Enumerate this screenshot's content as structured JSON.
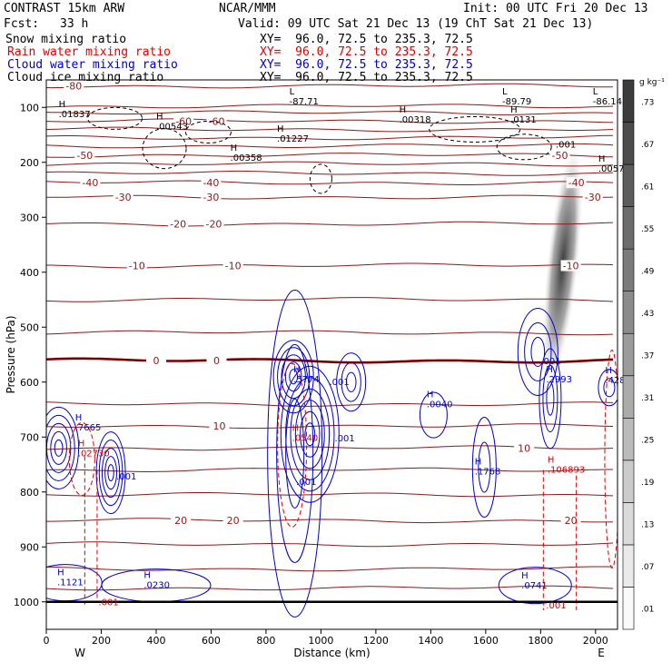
{
  "header": {
    "model": "CONTRAST 15km ARW",
    "source": "NCAR/MMM",
    "init": "Init: 00 UTC Fri 20 Dec 13",
    "fcst_label": "Fcst:",
    "fcst_value": "33 h",
    "valid": "Valid: 09 UTC Sat 21 Dec 13 (19 ChT Sat 21 Dec 13)"
  },
  "fields": [
    {
      "name": "Snow mixing ratio",
      "xy": "XY=  96.0, 72.5 to 235.3, 72.5",
      "color": "#000000"
    },
    {
      "name": "Rain water mixing ratio",
      "xy": "XY=  96.0, 72.5 to 235.3, 72.5",
      "color": "#e00000"
    },
    {
      "name": "Cloud water mixing ratio",
      "xy": "XY=  96.0, 72.5 to 235.3, 72.5",
      "color": "#0000cc"
    },
    {
      "name": "Cloud ice mixing ratio",
      "xy": "XY=  96.0, 72.5 to 235.3, 72.5",
      "color": "#000000"
    }
  ],
  "colors": {
    "temperature": "#8b1a1a",
    "zero_isotherm": "#7a0000",
    "rain": "#e00000",
    "cloud_water": "#0000cc",
    "cloud_ice": "#000000",
    "ground": "#000000"
  },
  "chart_data": {
    "type": "cross-section",
    "xlabel": "Distance (km)",
    "ylabel": "Pressure (hPa)",
    "xlim": [
      0,
      2080
    ],
    "ylim": [
      1050,
      50
    ],
    "x_ticks": [
      0,
      200,
      400,
      600,
      800,
      1000,
      1200,
      1400,
      1600,
      1800,
      2000
    ],
    "y_ticks": [
      100,
      200,
      300,
      400,
      500,
      600,
      700,
      800,
      900,
      1000
    ],
    "end_labels": {
      "left": "W",
      "right": "E"
    },
    "ground_pressure": 1000,
    "isotherms": [
      {
        "t": -80,
        "p": 61,
        "labels": [
          [
            100,
            "-80"
          ]
        ]
      },
      {
        "t": -80,
        "p": 98,
        "labels": []
      },
      {
        "t": -80,
        "p": 110,
        "labels": []
      },
      {
        "t": -60,
        "p": 125,
        "labels": [
          [
            500,
            "-60"
          ],
          [
            620,
            "-60"
          ]
        ]
      },
      {
        "t": -60,
        "p": 140,
        "labels": []
      },
      {
        "t": -60,
        "p": 155,
        "labels": []
      },
      {
        "t": -60,
        "p": 170,
        "labels": []
      },
      {
        "t": -50,
        "p": 187,
        "labels": [
          [
            140,
            "-50"
          ],
          [
            1870,
            "-50"
          ]
        ]
      },
      {
        "t": -40,
        "p": 203,
        "labels": []
      },
      {
        "t": -40,
        "p": 220,
        "labels": []
      },
      {
        "t": -40,
        "p": 237,
        "labels": [
          [
            160,
            "-40"
          ],
          [
            600,
            "-40"
          ],
          [
            1930,
            "-40"
          ]
        ]
      },
      {
        "t": -30,
        "p": 263,
        "labels": [
          [
            280,
            "-30"
          ],
          [
            600,
            "-30"
          ],
          [
            1990,
            "-30"
          ]
        ]
      },
      {
        "t": -20,
        "p": 312,
        "labels": [
          [
            480,
            "-20"
          ],
          [
            610,
            "-20"
          ]
        ]
      },
      {
        "t": -10,
        "p": 388,
        "labels": [
          [
            330,
            "-10"
          ],
          [
            680,
            "-10"
          ],
          [
            1910,
            "-10"
          ]
        ]
      },
      {
        "t": -10,
        "p": 450,
        "labels": []
      },
      {
        "t": -10,
        "p": 510,
        "labels": []
      },
      {
        "t": 0,
        "p": 561,
        "labels": [
          [
            400,
            "0"
          ],
          [
            620,
            "0"
          ]
        ],
        "bold": true
      },
      {
        "t": 10,
        "p": 640,
        "labels": []
      },
      {
        "t": 10,
        "p": 680,
        "labels": [
          [
            630,
            "10"
          ]
        ]
      },
      {
        "t": 10,
        "p": 720,
        "labels": [
          [
            1740,
            "10"
          ]
        ]
      },
      {
        "t": 10,
        "p": 760,
        "labels": []
      },
      {
        "t": 10,
        "p": 805,
        "labels": []
      },
      {
        "t": 20,
        "p": 852,
        "labels": [
          [
            490,
            "20"
          ],
          [
            680,
            "20"
          ],
          [
            1910,
            "20"
          ]
        ]
      },
      {
        "t": 20,
        "p": 895,
        "labels": []
      },
      {
        "t": 20,
        "p": 940,
        "labels": []
      },
      {
        "t": 20,
        "p": 975,
        "labels": []
      }
    ],
    "annotations": [
      {
        "x": 45,
        "p": 118,
        "marker": "H",
        "value": ".01837",
        "color": "#000000"
      },
      {
        "x": 400,
        "p": 140,
        "marker": "H",
        "value": ".00543",
        "color": "#000000"
      },
      {
        "x": 840,
        "p": 162,
        "marker": "H",
        "value": ".01227",
        "color": "#000000"
      },
      {
        "x": 670,
        "p": 197,
        "marker": "H",
        "value": ".00358",
        "color": "#000000"
      },
      {
        "x": 1285,
        "p": 128,
        "marker": "H",
        "value": ".00318",
        "color": "#000000"
      },
      {
        "x": 1690,
        "p": 128,
        "marker": "H",
        "value": ".0131",
        "color": "#000000"
      },
      {
        "x": 885,
        "p": 95,
        "marker": "L",
        "value": "-87.71",
        "color": "#000000"
      },
      {
        "x": 1660,
        "p": 95,
        "marker": "L",
        "value": "-89.79",
        "color": "#000000"
      },
      {
        "x": 1990,
        "p": 95,
        "marker": "L",
        "value": "-86.14",
        "color": "#000000"
      },
      {
        "x": 1855,
        "p": 173,
        "marker": "",
        "value": ".001",
        "color": "#000000"
      },
      {
        "x": 2010,
        "p": 217,
        "marker": "H",
        "value": ".00578",
        "color": "#000000"
      },
      {
        "x": 105,
        "p": 688,
        "marker": "H",
        "value": ".7665",
        "color": "#0000cc"
      },
      {
        "x": 900,
        "p": 600,
        "marker": "H",
        "value": ".5774",
        "color": "#0000cc"
      },
      {
        "x": 1030,
        "p": 605,
        "marker": "",
        "value": ".001",
        "color": "#0000cc"
      },
      {
        "x": 1800,
        "p": 567,
        "marker": "",
        "value": ".001",
        "color": "#0000cc"
      },
      {
        "x": 1820,
        "p": 600,
        "marker": "H",
        "value": ".2993",
        "color": "#0000cc"
      },
      {
        "x": 2035,
        "p": 602,
        "marker": "H",
        "value": ".428",
        "color": "#0000cc"
      },
      {
        "x": 1385,
        "p": 646,
        "marker": "H",
        "value": ".0040",
        "color": "#0000cc"
      },
      {
        "x": 1050,
        "p": 708,
        "marker": "",
        "value": ".001",
        "color": "#0000cc"
      },
      {
        "x": 255,
        "p": 777,
        "marker": "",
        "value": ".001",
        "color": "#0000cc"
      },
      {
        "x": 910,
        "p": 787,
        "marker": "",
        "value": ".001",
        "color": "#0000cc"
      },
      {
        "x": 1560,
        "p": 768,
        "marker": "H",
        "value": ".1768",
        "color": "#0000cc"
      },
      {
        "x": 40,
        "p": 970,
        "marker": "H",
        "value": ".1121",
        "color": "#0000cc"
      },
      {
        "x": 355,
        "p": 975,
        "marker": "H",
        "value": ".0230",
        "color": "#0000cc"
      },
      {
        "x": 1730,
        "p": 976,
        "marker": "H",
        "value": ".0741",
        "color": "#0000cc"
      },
      {
        "x": 115,
        "p": 735,
        "marker": "H",
        "value": ".02730",
        "color": "#e00000"
      },
      {
        "x": 895,
        "p": 707,
        "marker": "H",
        "value": ".0540",
        "color": "#e00000"
      },
      {
        "x": 1825,
        "p": 765,
        "marker": "H",
        "value": ".106893",
        "color": "#e00000"
      },
      {
        "x": 190,
        "p": 1006,
        "marker": "",
        "value": ".001",
        "color": "#e00000"
      },
      {
        "x": 1820,
        "p": 1012,
        "marker": "",
        "value": ".001",
        "color": "#e00000"
      }
    ],
    "colorbar": {
      "units": "g kg⁻¹",
      "labels": [
        ".01",
        ".07",
        ".13",
        ".19",
        ".25",
        ".31",
        ".37",
        ".43",
        ".49",
        ".55",
        ".61",
        ".67",
        ".73"
      ]
    }
  }
}
